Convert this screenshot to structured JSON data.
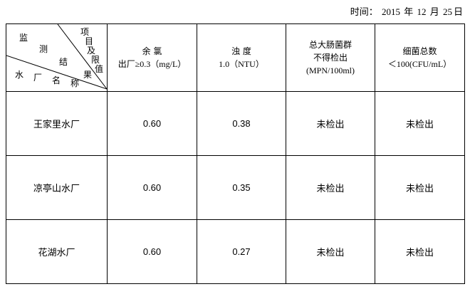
{
  "date": {
    "label": "时间：",
    "year": "2015",
    "year_unit": "年",
    "month": "12",
    "month_unit": "月",
    "day": "25",
    "day_unit": "日"
  },
  "corner": {
    "top_right": [
      "项",
      "目",
      "及",
      "限",
      "值"
    ],
    "middle": [
      "监",
      "测",
      "结",
      "果"
    ],
    "bottom": [
      "水",
      "厂",
      "名",
      "称"
    ]
  },
  "columns": [
    {
      "line1": "余 氯",
      "line2": "出厂≥0.3（mg/L）"
    },
    {
      "line1": "浊 度",
      "line2": "1.0（NTU）"
    },
    {
      "line1": "总大肠菌群",
      "line2": "不得检出",
      "line3": "(MPN/100ml)"
    },
    {
      "line1": "细菌总数",
      "line2": "＜100(CFU/mL）"
    }
  ],
  "rows": [
    {
      "name": "王家里水厂",
      "values": [
        "0.60",
        "0.38",
        "未检出",
        "未检出"
      ]
    },
    {
      "name": "凉亭山水厂",
      "values": [
        "0.60",
        "0.35",
        "未检出",
        "未检出"
      ]
    },
    {
      "name": "花湖水厂",
      "values": [
        "0.60",
        "0.27",
        "未检出",
        "未检出"
      ]
    }
  ]
}
